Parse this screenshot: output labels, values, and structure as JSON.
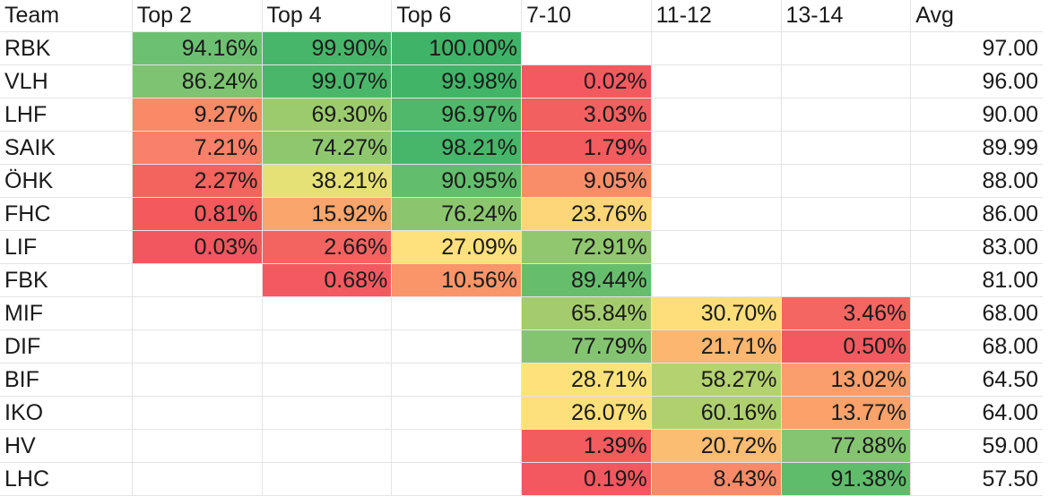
{
  "headers": [
    "Team",
    "Top 2",
    "Top 4",
    "Top 6",
    "7-10",
    "11-12",
    "13-14",
    "Avg"
  ],
  "rows": [
    {
      "team": "RBK",
      "values": [
        "94.16%",
        "99.90%",
        "100.00%",
        "",
        "",
        ""
      ],
      "colors": [
        "#6cc072",
        "#48b66a",
        "#3fb368",
        null,
        null,
        null
      ],
      "avg": "97.00"
    },
    {
      "team": "VLH",
      "values": [
        "86.24%",
        "99.07%",
        "99.98%",
        "0.02%",
        "",
        ""
      ],
      "colors": [
        "#7dc372",
        "#4ab66a",
        "#42b468",
        "#f25a60",
        null,
        null
      ],
      "avg": "96.00"
    },
    {
      "team": "LHF",
      "values": [
        "9.27%",
        "69.30%",
        "96.97%",
        "3.03%",
        "",
        ""
      ],
      "colors": [
        "#f98a68",
        "#9ccb6d",
        "#50b86a",
        "#f36060",
        null,
        null
      ],
      "avg": "90.00"
    },
    {
      "team": "SAIK",
      "values": [
        "7.21%",
        "74.27%",
        "98.21%",
        "1.79%",
        "",
        ""
      ],
      "colors": [
        "#f9806a",
        "#8fc76f",
        "#48b66a",
        "#f25c5f",
        null,
        null
      ],
      "avg": "89.99"
    },
    {
      "team": "ÖHK",
      "values": [
        "2.27%",
        "38.21%",
        "90.95%",
        "9.05%",
        "",
        ""
      ],
      "colors": [
        "#f3645f",
        "#e6e176",
        "#62bd6c",
        "#f98d6a",
        null,
        null
      ],
      "avg": "88.00"
    },
    {
      "team": "FHC",
      "values": [
        "0.81%",
        "15.92%",
        "76.24%",
        "23.76%",
        "",
        ""
      ],
      "colors": [
        "#f25a5e",
        "#faa56b",
        "#8bc66f",
        "#fdd679",
        null,
        null
      ],
      "avg": "86.00"
    },
    {
      "team": "LIF",
      "values": [
        "0.03%",
        "2.66%",
        "27.09%",
        "72.91%",
        "",
        ""
      ],
      "colors": [
        "#f1575f",
        "#f36461",
        "#fde17c",
        "#90c76f",
        null,
        null
      ],
      "avg": "83.00"
    },
    {
      "team": "FBK",
      "values": [
        "",
        "0.68%",
        "10.56%",
        "89.44%",
        "",
        ""
      ],
      "colors": [
        null,
        "#f25a5f",
        "#fa9569",
        "#66be6c",
        null,
        null
      ],
      "avg": "81.00"
    },
    {
      "team": "MIF",
      "values": [
        "",
        "",
        "",
        "65.84%",
        "30.70%",
        "3.46%"
      ],
      "colors": [
        null,
        null,
        null,
        "#a4cc6e",
        "#fdde7b",
        "#f46662"
      ],
      "avg": "68.00"
    },
    {
      "team": "DIF",
      "values": [
        "",
        "",
        "",
        "77.79%",
        "21.71%",
        "0.50%"
      ],
      "colors": [
        null,
        null,
        null,
        "#84c470",
        "#fbb76f",
        "#f25a5f"
      ],
      "avg": "68.00"
    },
    {
      "team": "BIF",
      "values": [
        "",
        "",
        "",
        "28.71%",
        "58.27%",
        "13.02%"
      ],
      "colors": [
        null,
        null,
        null,
        "#fde27c",
        "#b5d270",
        "#fa9e6b"
      ],
      "avg": "64.50"
    },
    {
      "team": "IKO",
      "values": [
        "",
        "",
        "",
        "26.07%",
        "60.16%",
        "13.77%"
      ],
      "colors": [
        null,
        null,
        null,
        "#fde07b",
        "#b0d06f",
        "#fba26b"
      ],
      "avg": "64.00"
    },
    {
      "team": "HV",
      "values": [
        "",
        "",
        "",
        "1.39%",
        "20.72%",
        "77.88%"
      ],
      "colors": [
        null,
        null,
        null,
        "#f25c5f",
        "#fbbd72",
        "#85c470"
      ],
      "avg": "59.00"
    },
    {
      "team": "LHC",
      "values": [
        "",
        "",
        "",
        "0.19%",
        "8.43%",
        "91.38%"
      ],
      "colors": [
        null,
        null,
        null,
        "#f1585f",
        "#f98a69",
        "#5fbc6b"
      ],
      "avg": "57.50"
    }
  ]
}
